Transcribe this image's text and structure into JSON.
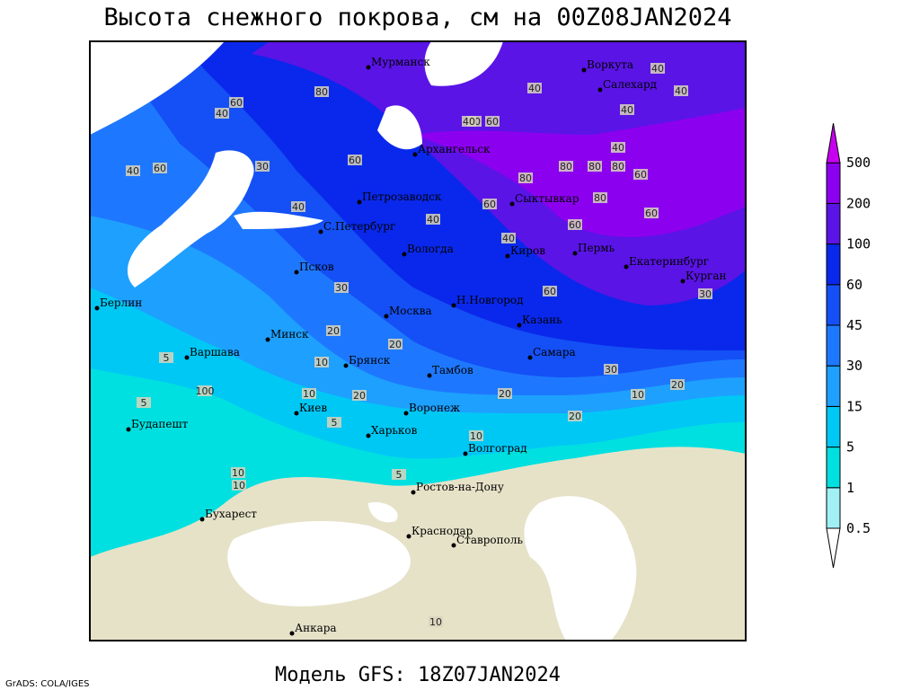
{
  "header": {
    "title": "Высота снежного покрова, см на 00Z08JAN2024"
  },
  "footer": {
    "model": "Модель GFS: 18Z07JAN2024",
    "credit": "GrADS: COLA/IGES"
  },
  "legend": {
    "levels": [
      0.5,
      1,
      5,
      15,
      30,
      45,
      60,
      100,
      200,
      500
    ],
    "colors": [
      "#ffffff",
      "#a0f0f5",
      "#00e0e0",
      "#00c8f5",
      "#1ea0ff",
      "#1e78ff",
      "#1450f5",
      "#0a28eb",
      "#5a14e6",
      "#8c00f0",
      "#c800f0"
    ]
  },
  "map": {
    "cities": [
      "Мурманск",
      "Воркута",
      "Салехард",
      "Архангельск",
      "Сыктывкар",
      "Петрозаводск",
      "С.Петербург",
      "Вологда",
      "Киров",
      "Пермь",
      "Екатеринбург",
      "Курган",
      "Псков",
      "Н.Новгород",
      "Москва",
      "Казань",
      "Берлин",
      "Минск",
      "Варшава",
      "Самара",
      "Брянск",
      "Тамбов",
      "Киев",
      "Воронеж",
      "Будапешт",
      "Харьков",
      "Волгоград",
      "Ростов-на-Дону",
      "Бухарест",
      "Краснодар",
      "Ставрополь",
      "Анкара"
    ],
    "contour_labels": [
      40,
      60,
      40,
      80,
      40,
      40,
      60,
      40,
      60,
      80,
      40,
      60,
      80,
      60,
      80,
      30,
      80,
      80,
      40,
      40,
      60,
      80,
      60,
      40,
      40,
      40,
      60,
      60,
      30,
      20,
      20,
      30,
      10,
      10,
      20,
      5,
      100,
      20,
      5,
      10,
      5,
      20,
      10,
      30,
      10,
      20,
      5,
      10,
      10
    ]
  }
}
